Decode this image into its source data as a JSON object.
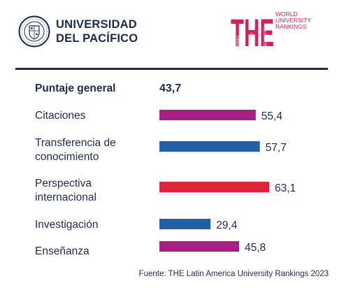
{
  "branding": {
    "university_line1": "UNIVERSIDAD",
    "university_line2": "DEL PACÍFICO",
    "seal_text": "UNIVERSIDAD DEL PACÍFICO · LIMA · PERÚ",
    "the_letters": "THE",
    "the_side_lines": [
      "WORLD",
      "UNIVERSITY",
      "RANKINGS"
    ],
    "the_vertical_lines": [
      "TIMES",
      "HIGHER",
      "EDUCATION"
    ]
  },
  "colors": {
    "navy": "#1d2a4f",
    "magenta": "#a81f83",
    "blue": "#235fa4",
    "red": "#e0243b",
    "the_pink": "#d81e5b"
  },
  "overall": {
    "label": "Puntaje general",
    "value": "43,7"
  },
  "chart_data": {
    "type": "bar",
    "orientation": "horizontal",
    "categories": [
      [
        "Citaciones"
      ],
      [
        "Transferencia de",
        "conocimiento"
      ],
      [
        "Perspectiva",
        "internacional"
      ],
      [
        "Investigación"
      ],
      [
        "Enseñanza"
      ]
    ],
    "values": [
      55.4,
      57.7,
      63.1,
      29.4,
      45.8
    ],
    "value_labels": [
      "55,4",
      "57,7",
      "63,1",
      "29,4",
      "45,8"
    ],
    "bar_colors": [
      "#a81f83",
      "#235fa4",
      "#e0243b",
      "#235fa4",
      "#a81f83"
    ],
    "xlim": [
      0,
      63.1
    ],
    "grid": false,
    "legend": "none"
  },
  "source": "Fuente: THE Latin America University Rankings 2023"
}
